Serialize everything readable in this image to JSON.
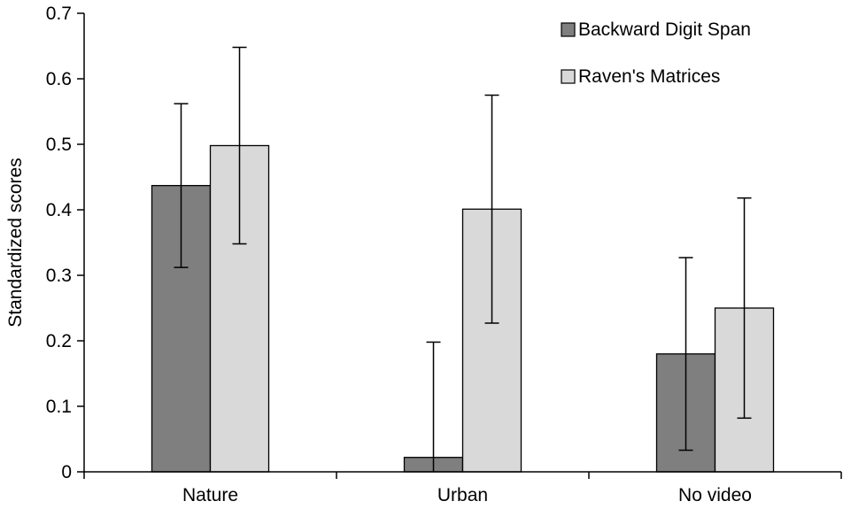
{
  "chart_data": {
    "type": "bar",
    "title": "",
    "ylabel": "Standardized scores",
    "xlabel": "",
    "ylim": [
      0,
      0.7
    ],
    "ytick_step": 0.1,
    "yticks": [
      "0",
      "0.1",
      "0.2",
      "0.3",
      "0.4",
      "0.5",
      "0.6",
      "0.7"
    ],
    "categories": [
      "Nature",
      "Urban",
      "No video"
    ],
    "grid": false,
    "legend_position": "top-right",
    "axis_color": "#000000",
    "series": [
      {
        "name": "Backward Digit Span",
        "color": "#7f7f7f",
        "values": [
          0.437,
          0.022,
          0.18
        ],
        "errors": [
          0.125,
          0.176,
          0.147
        ]
      },
      {
        "name": "Raven's Matrices",
        "color": "#d9d9d9",
        "values": [
          0.498,
          0.401,
          0.25
        ],
        "errors": [
          0.15,
          0.174,
          0.168
        ]
      }
    ]
  }
}
